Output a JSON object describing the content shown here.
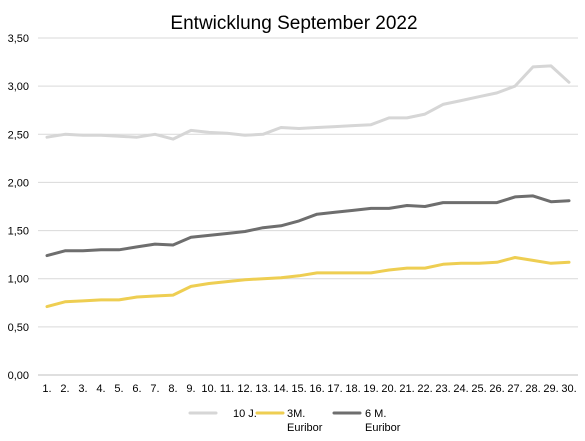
{
  "chart_data": {
    "type": "line",
    "title": "Entwicklung September 2022",
    "xlabel": "",
    "ylabel": "",
    "categories": [
      "1.",
      "2.",
      "3.",
      "4.",
      "5.",
      "6.",
      "7.",
      "8.",
      "9.",
      "10.",
      "11.",
      "12.",
      "13.",
      "14.",
      "15.",
      "16.",
      "17.",
      "18.",
      "19.",
      "20.",
      "21.",
      "22.",
      "23.",
      "24.",
      "25.",
      "26.",
      "27.",
      "28.",
      "29.",
      "30."
    ],
    "ylim": [
      0,
      3.5
    ],
    "yticks": [
      "0,00",
      "0,50",
      "1,00",
      "1,50",
      "2,00",
      "2,50",
      "3,00",
      "3,50"
    ],
    "grid": true,
    "legend_position": "bottom",
    "series": [
      {
        "name": "10 J.",
        "color": "#d6d6d6",
        "values": [
          2.47,
          2.5,
          2.49,
          2.49,
          2.48,
          2.47,
          2.5,
          2.45,
          2.54,
          2.52,
          2.51,
          2.49,
          2.5,
          2.57,
          2.56,
          2.57,
          2.58,
          2.59,
          2.6,
          2.67,
          2.67,
          2.71,
          2.81,
          2.85,
          2.89,
          2.93,
          3.0,
          3.2,
          3.21,
          3.04
        ]
      },
      {
        "name": "3M. Euribor",
        "legend_lines": [
          "3M.",
          "Euribor"
        ],
        "color": "#eece52",
        "values": [
          0.71,
          0.76,
          0.77,
          0.78,
          0.78,
          0.81,
          0.82,
          0.83,
          0.92,
          0.95,
          0.97,
          0.99,
          1.0,
          1.01,
          1.03,
          1.06,
          1.06,
          1.06,
          1.06,
          1.09,
          1.11,
          1.11,
          1.15,
          1.16,
          1.16,
          1.17,
          1.22,
          1.19,
          1.16,
          1.17
        ]
      },
      {
        "name": "6 M. Euribor",
        "legend_lines": [
          "6 M.",
          "Euribor"
        ],
        "color": "#6e6e6e",
        "values": [
          1.24,
          1.29,
          1.29,
          1.3,
          1.3,
          1.33,
          1.36,
          1.35,
          1.43,
          1.45,
          1.47,
          1.49,
          1.53,
          1.55,
          1.6,
          1.67,
          1.69,
          1.71,
          1.73,
          1.73,
          1.76,
          1.75,
          1.79,
          1.79,
          1.79,
          1.79,
          1.85,
          1.86,
          1.8,
          1.81
        ]
      }
    ]
  }
}
